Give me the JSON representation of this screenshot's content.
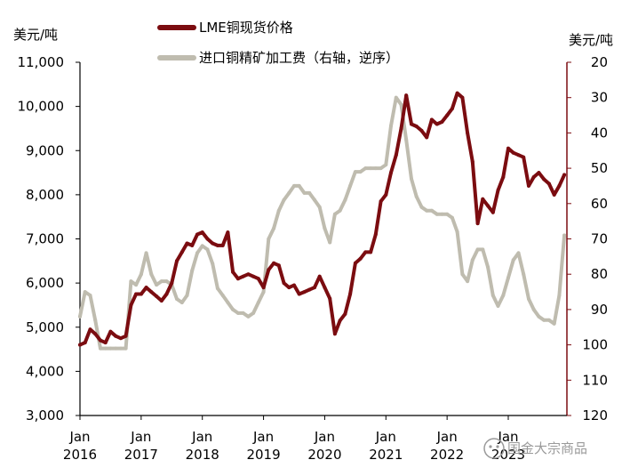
{
  "chart_data": {
    "type": "line",
    "title": "",
    "left_axis": {
      "unit": "美元/吨",
      "range": [
        3000,
        11000
      ],
      "ticks": [
        "3,000",
        "4,000",
        "5,000",
        "6,000",
        "7,000",
        "8,000",
        "9,000",
        "10,000",
        "11,000"
      ]
    },
    "right_axis": {
      "unit": "美元/吨",
      "range": [
        20,
        120
      ],
      "inverted": true,
      "ticks": [
        "20",
        "30",
        "40",
        "50",
        "60",
        "70",
        "80",
        "90",
        "100",
        "110",
        "120"
      ]
    },
    "x_axis": {
      "range": [
        "2016-01",
        "2023-12"
      ],
      "ticks": [
        {
          "line1": "Jan",
          "line2": "2016"
        },
        {
          "line1": "Jan",
          "line2": "2017"
        },
        {
          "line1": "Jan",
          "line2": "2018"
        },
        {
          "line1": "Jan",
          "line2": "2019"
        },
        {
          "line1": "Jan",
          "line2": "2020"
        },
        {
          "line1": "Jan",
          "line2": "2021"
        },
        {
          "line1": "Jan",
          "line2": "2022"
        },
        {
          "line1": "Jan",
          "line2": "2023"
        }
      ]
    },
    "series": [
      {
        "name": "LME铜现货价格",
        "axis": "left",
        "color": "#7b0c10",
        "points": [
          [
            "2016-01",
            4600
          ],
          [
            "2016-02",
            4650
          ],
          [
            "2016-03",
            4950
          ],
          [
            "2016-04",
            4850
          ],
          [
            "2016-05",
            4700
          ],
          [
            "2016-06",
            4650
          ],
          [
            "2016-07",
            4900
          ],
          [
            "2016-08",
            4800
          ],
          [
            "2016-09",
            4750
          ],
          [
            "2016-10",
            4800
          ],
          [
            "2016-11",
            5500
          ],
          [
            "2016-12",
            5750
          ],
          [
            "2017-01",
            5750
          ],
          [
            "2017-02",
            5900
          ],
          [
            "2017-03",
            5800
          ],
          [
            "2017-04",
            5700
          ],
          [
            "2017-05",
            5600
          ],
          [
            "2017-06",
            5750
          ],
          [
            "2017-07",
            6000
          ],
          [
            "2017-08",
            6500
          ],
          [
            "2017-09",
            6700
          ],
          [
            "2017-10",
            6900
          ],
          [
            "2017-11",
            6850
          ],
          [
            "2017-12",
            7100
          ],
          [
            "2018-01",
            7150
          ],
          [
            "2018-02",
            7000
          ],
          [
            "2018-03",
            6900
          ],
          [
            "2018-04",
            6850
          ],
          [
            "2018-05",
            6850
          ],
          [
            "2018-06",
            7150
          ],
          [
            "2018-07",
            6250
          ],
          [
            "2018-08",
            6100
          ],
          [
            "2018-09",
            6150
          ],
          [
            "2018-10",
            6200
          ],
          [
            "2018-11",
            6150
          ],
          [
            "2018-12",
            6100
          ],
          [
            "2019-01",
            5900
          ],
          [
            "2019-02",
            6300
          ],
          [
            "2019-03",
            6450
          ],
          [
            "2019-04",
            6400
          ],
          [
            "2019-05",
            6000
          ],
          [
            "2019-06",
            5900
          ],
          [
            "2019-07",
            5950
          ],
          [
            "2019-08",
            5750
          ],
          [
            "2019-09",
            5800
          ],
          [
            "2019-10",
            5850
          ],
          [
            "2019-11",
            5900
          ],
          [
            "2019-12",
            6150
          ],
          [
            "2020-01",
            5900
          ],
          [
            "2020-02",
            5650
          ],
          [
            "2020-03",
            4850
          ],
          [
            "2020-04",
            5150
          ],
          [
            "2020-05",
            5300
          ],
          [
            "2020-06",
            5750
          ],
          [
            "2020-07",
            6450
          ],
          [
            "2020-08",
            6550
          ],
          [
            "2020-09",
            6700
          ],
          [
            "2020-10",
            6700
          ],
          [
            "2020-11",
            7100
          ],
          [
            "2020-12",
            7850
          ],
          [
            "2021-01",
            8000
          ],
          [
            "2021-02",
            8500
          ],
          [
            "2021-03",
            8900
          ],
          [
            "2021-04",
            9500
          ],
          [
            "2021-05",
            10250
          ],
          [
            "2021-06",
            9600
          ],
          [
            "2021-07",
            9550
          ],
          [
            "2021-08",
            9450
          ],
          [
            "2021-09",
            9300
          ],
          [
            "2021-10",
            9700
          ],
          [
            "2021-11",
            9600
          ],
          [
            "2021-12",
            9650
          ],
          [
            "2022-01",
            9800
          ],
          [
            "2022-02",
            9950
          ],
          [
            "2022-03",
            10300
          ],
          [
            "2022-04",
            10200
          ],
          [
            "2022-05",
            9400
          ],
          [
            "2022-06",
            8750
          ],
          [
            "2022-07",
            7350
          ],
          [
            "2022-08",
            7900
          ],
          [
            "2022-09",
            7750
          ],
          [
            "2022-10",
            7600
          ],
          [
            "2022-11",
            8100
          ],
          [
            "2022-12",
            8400
          ],
          [
            "2023-01",
            9050
          ],
          [
            "2023-02",
            8950
          ],
          [
            "2023-03",
            8900
          ],
          [
            "2023-04",
            8850
          ],
          [
            "2023-05",
            8200
          ],
          [
            "2023-06",
            8400
          ],
          [
            "2023-07",
            8500
          ],
          [
            "2023-08",
            8350
          ],
          [
            "2023-09",
            8250
          ],
          [
            "2023-10",
            8000
          ],
          [
            "2023-11",
            8200
          ],
          [
            "2023-12",
            8450
          ]
        ]
      },
      {
        "name": "进口铜精矿加工费（右轴，逆序）",
        "axis": "right",
        "color": "#bfbcaf",
        "points": [
          [
            "2016-01",
            92
          ],
          [
            "2016-02",
            85
          ],
          [
            "2016-03",
            86
          ],
          [
            "2016-04",
            93
          ],
          [
            "2016-05",
            101
          ],
          [
            "2016-06",
            101
          ],
          [
            "2016-07",
            101
          ],
          [
            "2016-08",
            101
          ],
          [
            "2016-09",
            101
          ],
          [
            "2016-10",
            101
          ],
          [
            "2016-11",
            82
          ],
          [
            "2016-12",
            83
          ],
          [
            "2017-01",
            80
          ],
          [
            "2017-02",
            74
          ],
          [
            "2017-03",
            80
          ],
          [
            "2017-04",
            83
          ],
          [
            "2017-05",
            82
          ],
          [
            "2017-06",
            82
          ],
          [
            "2017-07",
            83
          ],
          [
            "2017-08",
            87
          ],
          [
            "2017-09",
            88
          ],
          [
            "2017-10",
            86
          ],
          [
            "2017-11",
            79
          ],
          [
            "2017-12",
            74
          ],
          [
            "2018-01",
            72
          ],
          [
            "2018-02",
            73
          ],
          [
            "2018-03",
            77
          ],
          [
            "2018-04",
            84
          ],
          [
            "2018-05",
            86
          ],
          [
            "2018-06",
            88
          ],
          [
            "2018-07",
            90
          ],
          [
            "2018-08",
            91
          ],
          [
            "2018-09",
            91
          ],
          [
            "2018-10",
            92
          ],
          [
            "2018-11",
            91
          ],
          [
            "2018-12",
            88
          ],
          [
            "2019-01",
            85
          ],
          [
            "2019-02",
            70
          ],
          [
            "2019-03",
            67
          ],
          [
            "2019-04",
            62
          ],
          [
            "2019-05",
            59
          ],
          [
            "2019-06",
            57
          ],
          [
            "2019-07",
            55
          ],
          [
            "2019-08",
            55
          ],
          [
            "2019-09",
            57
          ],
          [
            "2019-10",
            57
          ],
          [
            "2019-11",
            59
          ],
          [
            "2019-12",
            61
          ],
          [
            "2020-01",
            67
          ],
          [
            "2020-02",
            71
          ],
          [
            "2020-03",
            63
          ],
          [
            "2020-04",
            62
          ],
          [
            "2020-05",
            59
          ],
          [
            "2020-06",
            55
          ],
          [
            "2020-07",
            51
          ],
          [
            "2020-08",
            51
          ],
          [
            "2020-09",
            50
          ],
          [
            "2020-10",
            50
          ],
          [
            "2020-11",
            50
          ],
          [
            "2020-12",
            50
          ],
          [
            "2021-01",
            49
          ],
          [
            "2021-02",
            38
          ],
          [
            "2021-03",
            30
          ],
          [
            "2021-04",
            32
          ],
          [
            "2021-05",
            42
          ],
          [
            "2021-06",
            53
          ],
          [
            "2021-07",
            58
          ],
          [
            "2021-08",
            61
          ],
          [
            "2021-09",
            62
          ],
          [
            "2021-10",
            62
          ],
          [
            "2021-11",
            63
          ],
          [
            "2021-12",
            63
          ],
          [
            "2022-01",
            63
          ],
          [
            "2022-02",
            64
          ],
          [
            "2022-03",
            68
          ],
          [
            "2022-04",
            80
          ],
          [
            "2022-05",
            82
          ],
          [
            "2022-06",
            76
          ],
          [
            "2022-07",
            73
          ],
          [
            "2022-08",
            73
          ],
          [
            "2022-09",
            78
          ],
          [
            "2022-10",
            86
          ],
          [
            "2022-11",
            89
          ],
          [
            "2022-12",
            86
          ],
          [
            "2023-01",
            81
          ],
          [
            "2023-02",
            76
          ],
          [
            "2023-03",
            74
          ],
          [
            "2023-04",
            80
          ],
          [
            "2023-05",
            87
          ],
          [
            "2023-06",
            90
          ],
          [
            "2023-07",
            92
          ],
          [
            "2023-08",
            93
          ],
          [
            "2023-09",
            93
          ],
          [
            "2023-10",
            94
          ],
          [
            "2023-11",
            86
          ],
          [
            "2023-12",
            69
          ]
        ]
      }
    ],
    "grid": false,
    "legend": "top-left",
    "watermark": "国金大宗商品"
  }
}
